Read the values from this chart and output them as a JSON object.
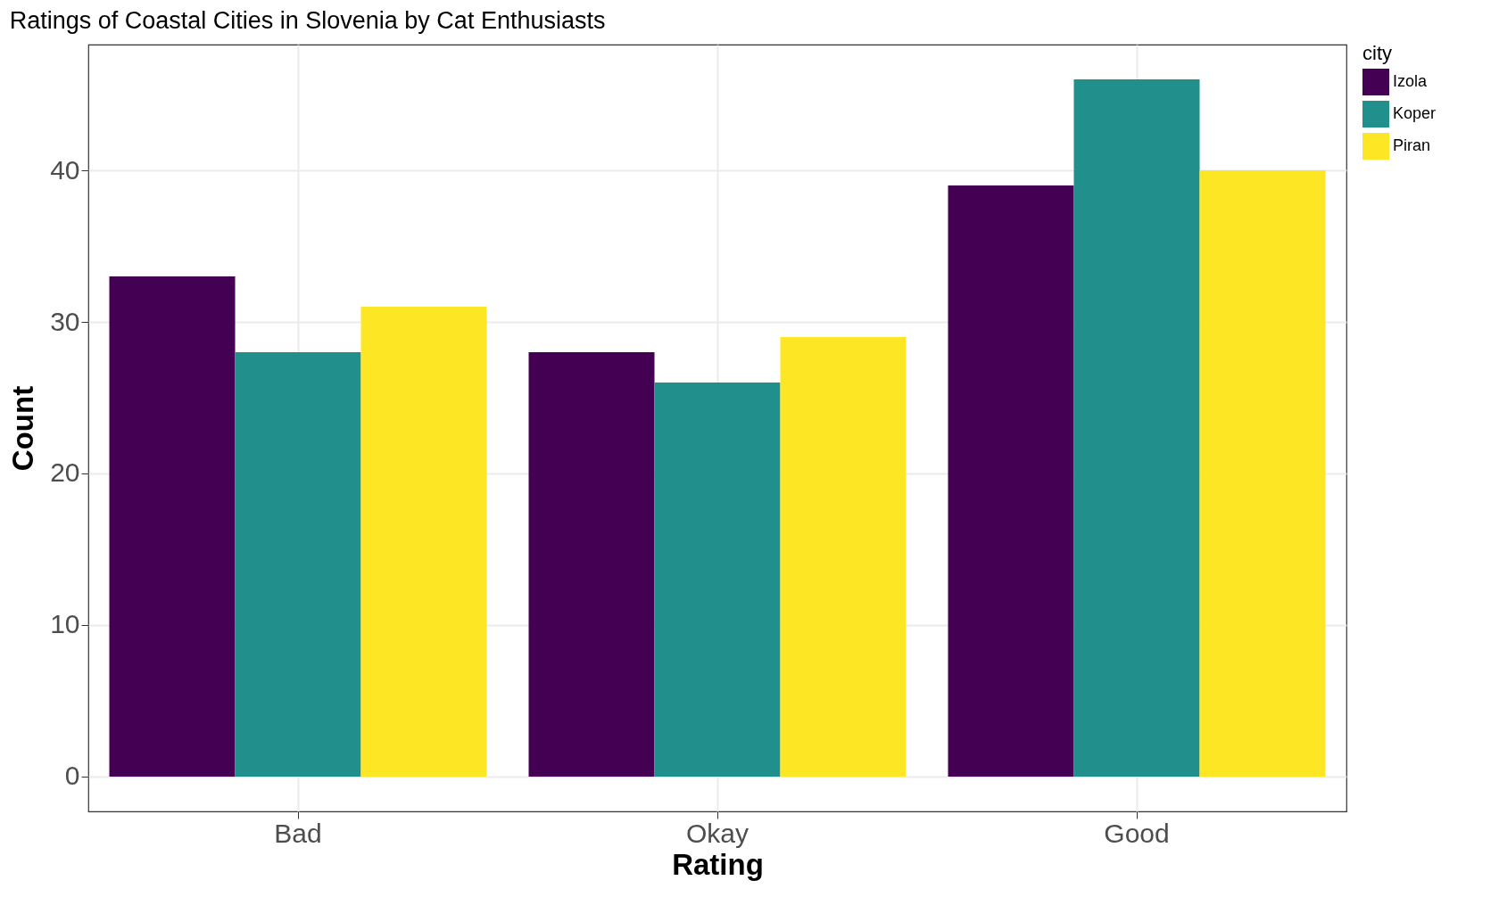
{
  "chart_data": {
    "type": "bar",
    "title": "Ratings of Coastal Cities in Slovenia by Cat Enthusiasts",
    "xlabel": "Rating",
    "ylabel": "Count",
    "legend_title": "city",
    "legend": "right",
    "grid": true,
    "categories": [
      "Bad",
      "Okay",
      "Good"
    ],
    "series": [
      {
        "name": "Izola",
        "color": "#440154",
        "values": [
          33,
          28,
          39
        ]
      },
      {
        "name": "Koper",
        "color": "#21908c",
        "values": [
          28,
          26,
          46
        ]
      },
      {
        "name": "Piran",
        "color": "#fde725",
        "values": [
          31,
          29,
          40
        ]
      }
    ],
    "ylim": [
      -2.3,
      48.3
    ],
    "yticks": [
      0,
      10,
      20,
      30,
      40
    ]
  }
}
